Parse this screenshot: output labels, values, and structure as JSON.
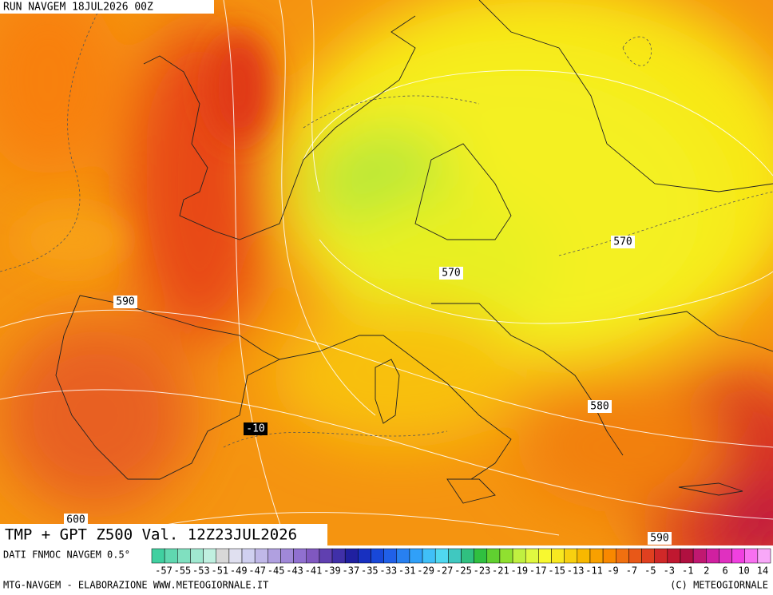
{
  "header": {
    "run": "RUN NAVGEM 18JUL2026 00Z"
  },
  "map": {
    "title": "TMP + GPT Z500 Val. 12Z23JUL2026",
    "contour_labels": [
      "590",
      "570",
      "570",
      "580",
      "590",
      "600",
      "-10"
    ]
  },
  "colorbar": {
    "source": "DATI FNMOC NAVGEM 0.5°",
    "colors": [
      "#40d0a0",
      "#60d8b0",
      "#80e0c0",
      "#a0e8d0",
      "#c0f0e0",
      "#d8d8d8",
      "#e0e0f0",
      "#d0d0f0",
      "#c0b8e8",
      "#b0a0e0",
      "#a088d8",
      "#9070d0",
      "#8058c0",
      "#6040b0",
      "#4030a8",
      "#2020a0",
      "#1830c0",
      "#1848d8",
      "#2060e8",
      "#2880f0",
      "#30a0f8",
      "#40c0f8",
      "#50d8f0",
      "#40c8c0",
      "#30c080",
      "#30c040",
      "#60d030",
      "#90e030",
      "#c0f040",
      "#e0f840",
      "#f8f830",
      "#f8e820",
      "#f8d010",
      "#f8b800",
      "#f8a000",
      "#f88800",
      "#f07010",
      "#e85818",
      "#e04020",
      "#d02828",
      "#c01830",
      "#b01040",
      "#c01870",
      "#d020a0",
      "#e030c0",
      "#f040e0",
      "#f870f0",
      "#f8a8f8"
    ],
    "labels": [
      "-57",
      "-55",
      "-53",
      "-51",
      "-49",
      "-47",
      "-45",
      "-43",
      "-41",
      "-39",
      "-37",
      "-35",
      "-33",
      "-31",
      "-29",
      "-27",
      "-25",
      "-23",
      "-21",
      "-19",
      "-17",
      "-15",
      "-13",
      "-11",
      "-9",
      "-7",
      "-5",
      "-3",
      "-1",
      "2",
      "6",
      "10",
      "14"
    ]
  },
  "footer": {
    "left": "MTG-NAVGEM - ELABORAZIONE WWW.METEOGIORNALE.IT",
    "right": "(C) METEOGIORNALE"
  }
}
